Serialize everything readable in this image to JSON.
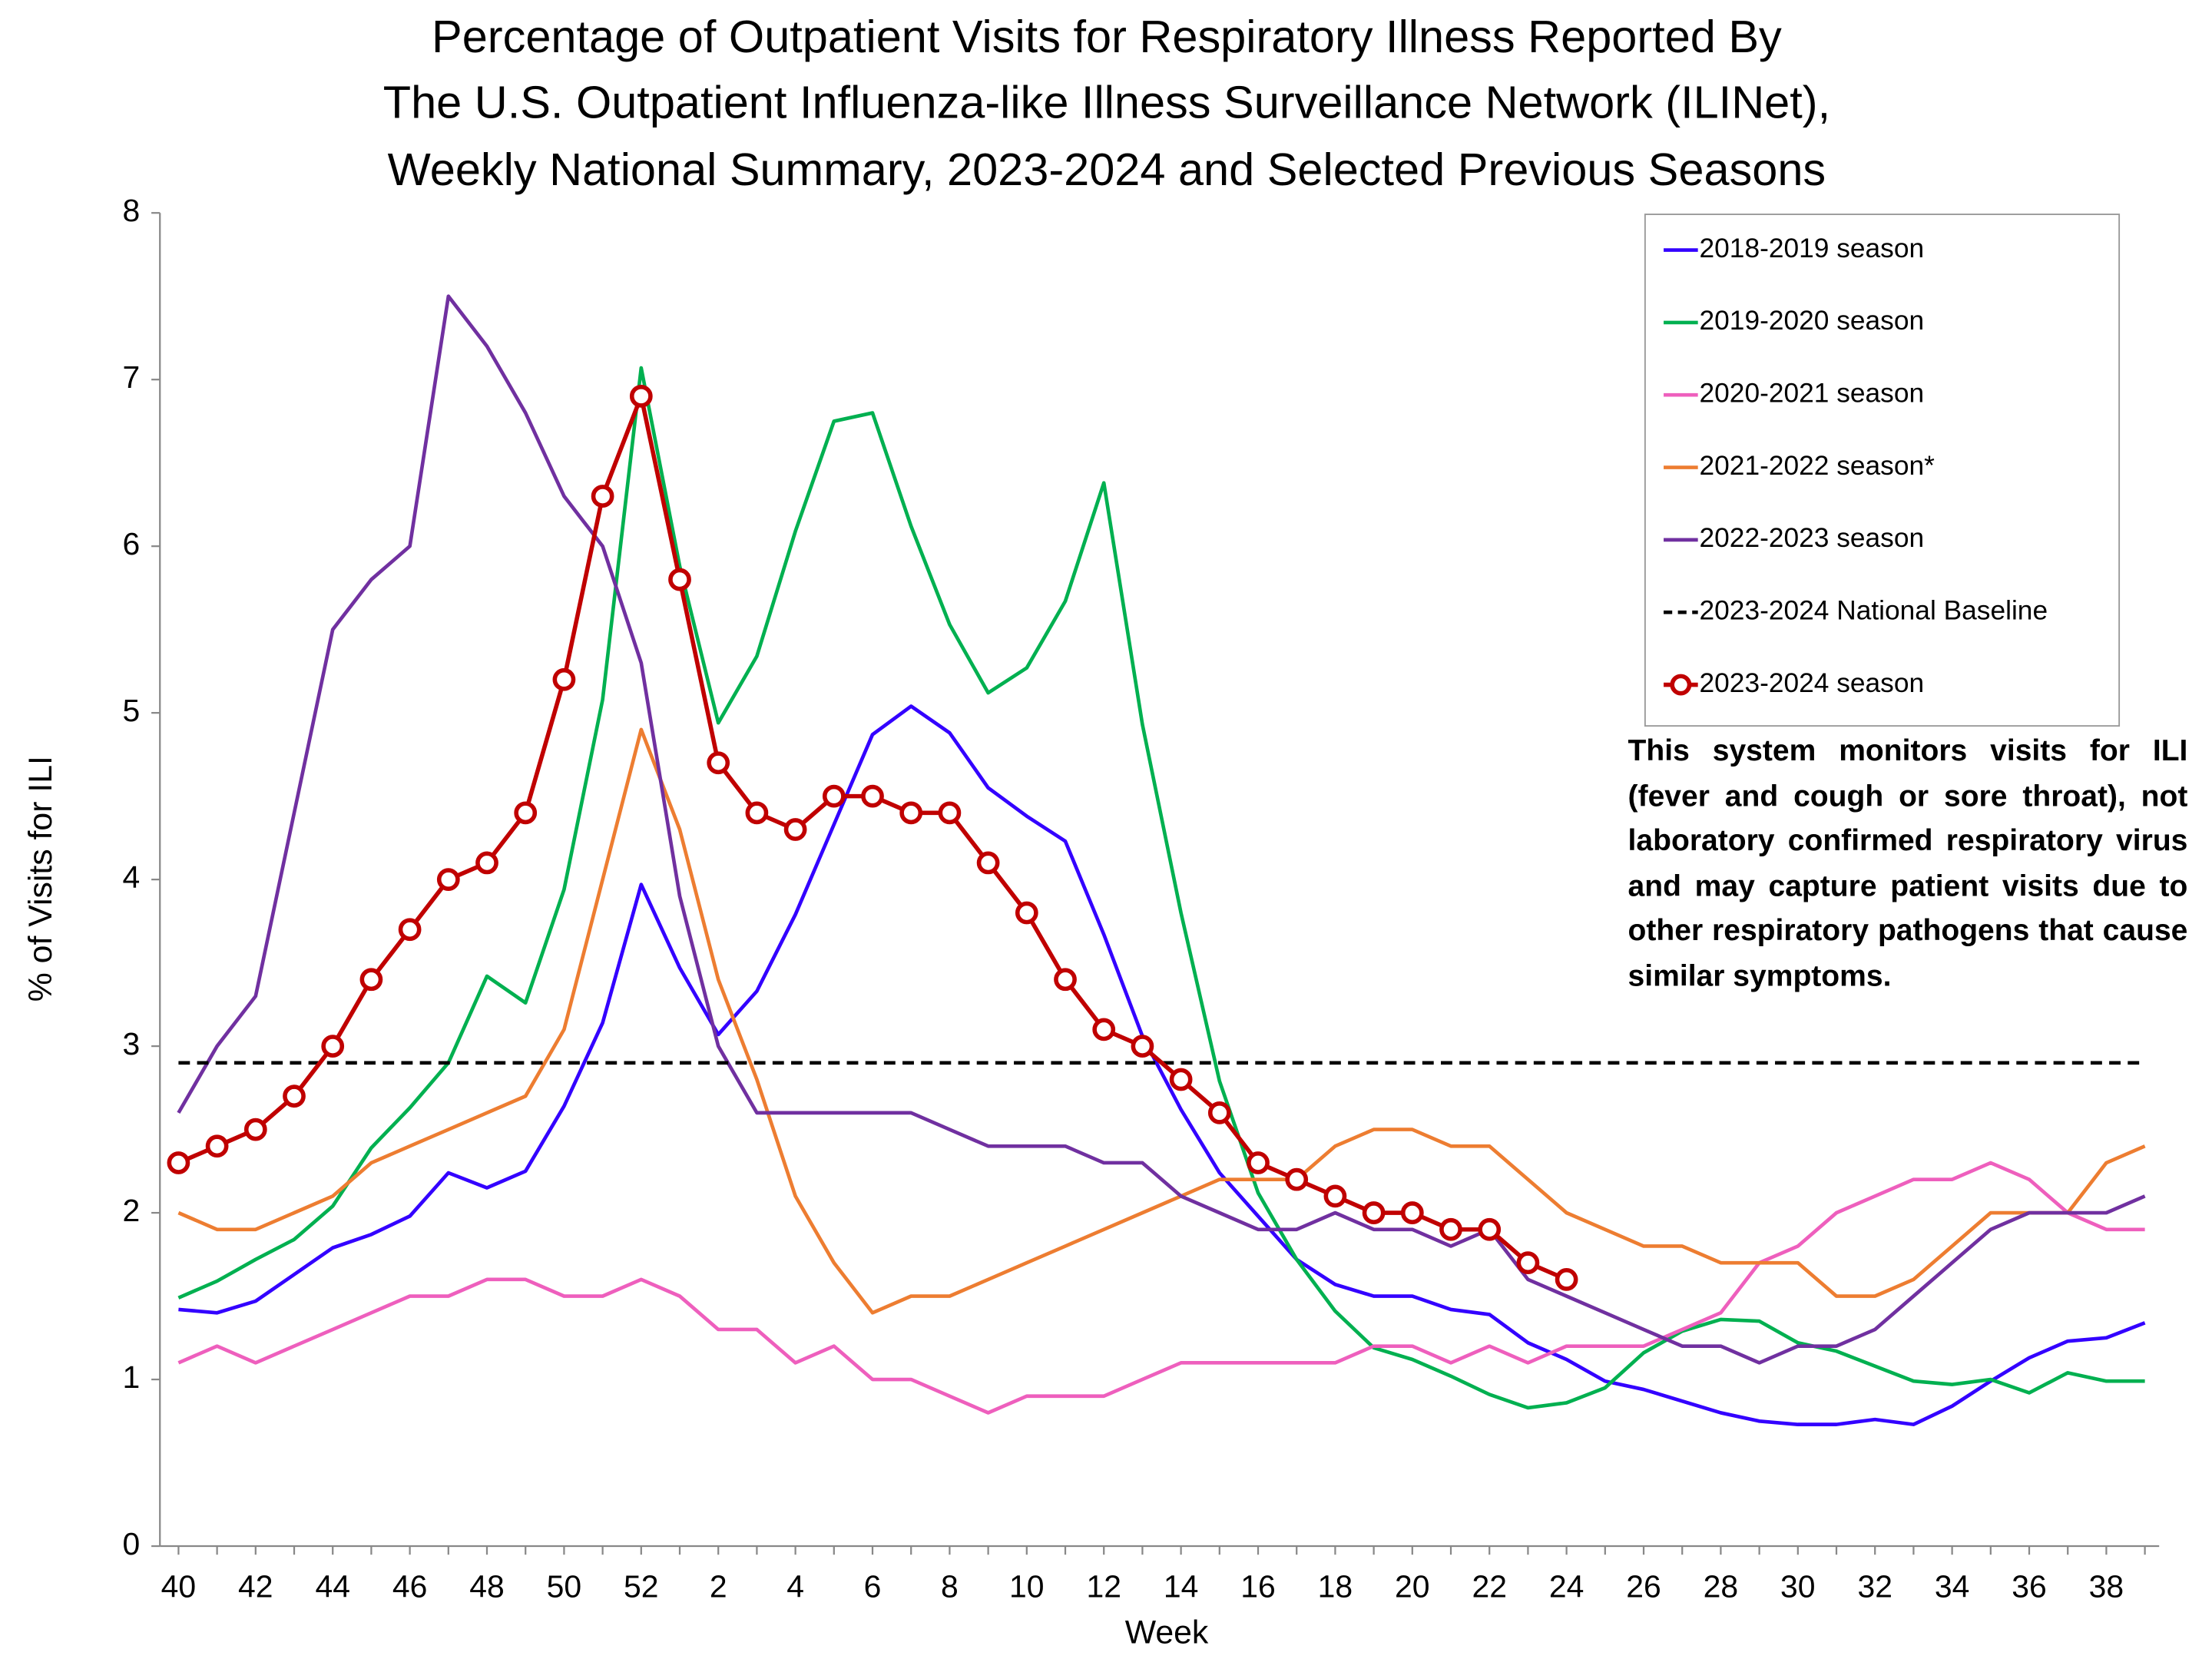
{
  "chart_data": {
    "type": "line",
    "title": [
      "Percentage of Outpatient Visits for Respiratory Illness Reported By",
      "The U.S. Outpatient Influenza-like Illness Surveillance Network (ILINet),",
      "Weekly National Summary, 2023-2024 and Selected Previous Seasons"
    ],
    "x_label": "Week",
    "y_label": "% of Visits for ILI",
    "note": "This system monitors visits for ILI (fever and cough or sore throat), not laboratory confirmed respiratory virus and may capture patient visits due to other respiratory pathogens that cause similar symptoms.",
    "categories": [
      "40",
      null,
      "42",
      null,
      "44",
      null,
      "46",
      null,
      "48",
      null,
      "50",
      null,
      "52",
      null,
      "2",
      null,
      "4",
      null,
      "6",
      null,
      "8",
      null,
      "10",
      null,
      "12",
      null,
      "14",
      null,
      "16",
      null,
      "18",
      null,
      "20",
      null,
      "22",
      null,
      "24",
      null,
      "26",
      null,
      "28",
      null,
      "30",
      null,
      "32",
      null,
      "34",
      null,
      "36",
      null,
      "38",
      null
    ],
    "ylim": [
      0,
      8
    ],
    "yticks": [
      0,
      1,
      2,
      3,
      4,
      5,
      6,
      7,
      8
    ],
    "series": [
      {
        "name": "2018-2019 season",
        "color": "#3300ff",
        "values": [
          1.42,
          1.4,
          1.47,
          1.63,
          1.79,
          1.87,
          1.98,
          2.24,
          2.15,
          2.25,
          2.64,
          3.14,
          3.97,
          3.47,
          3.07,
          3.33,
          3.79,
          4.33,
          4.87,
          5.04,
          4.88,
          4.55,
          4.38,
          4.23,
          3.67,
          3.06,
          2.62,
          2.24,
          1.98,
          1.72,
          1.57,
          1.5,
          1.5,
          1.42,
          1.39,
          1.22,
          1.12,
          0.99,
          0.94,
          0.87,
          0.8,
          0.75,
          0.73,
          0.73,
          0.76,
          0.73,
          0.84,
          0.99,
          1.13,
          1.23,
          1.25,
          1.34
        ]
      },
      {
        "name": "2019-2020 season",
        "color": "#00b050",
        "values": [
          1.49,
          1.59,
          1.72,
          1.84,
          2.04,
          2.39,
          2.63,
          2.9,
          3.42,
          3.26,
          3.94,
          5.08,
          7.07,
          5.88,
          4.94,
          5.34,
          6.09,
          6.75,
          6.8,
          6.12,
          5.53,
          5.12,
          5.27,
          5.67,
          6.38,
          4.93,
          3.8,
          2.79,
          2.12,
          1.72,
          1.41,
          1.19,
          1.12,
          1.02,
          0.91,
          0.83,
          0.86,
          0.95,
          1.16,
          1.29,
          1.36,
          1.35,
          1.22,
          1.17,
          1.08,
          0.99,
          0.97,
          1.0,
          0.92,
          1.04,
          0.99,
          0.99
        ]
      },
      {
        "name": "2020-2021 season",
        "color": "#ee5fbd",
        "values": [
          1.1,
          1.2,
          1.1,
          1.2,
          1.3,
          1.4,
          1.5,
          1.5,
          1.6,
          1.6,
          1.5,
          1.5,
          1.6,
          1.5,
          1.3,
          1.3,
          1.1,
          1.2,
          1.0,
          1.0,
          0.9,
          0.8,
          0.9,
          0.9,
          0.9,
          1.0,
          1.1,
          1.1,
          1.1,
          1.1,
          1.1,
          1.2,
          1.2,
          1.1,
          1.2,
          1.1,
          1.2,
          1.2,
          1.2,
          1.3,
          1.4,
          1.7,
          1.8,
          2.0,
          2.1,
          2.2,
          2.2,
          2.3,
          2.2,
          2.0,
          1.9,
          1.9
        ]
      },
      {
        "name": "2021-2022 season*",
        "color": "#ed7d31",
        "values": [
          2.0,
          1.9,
          1.9,
          2.0,
          2.1,
          2.3,
          2.4,
          2.5,
          2.6,
          2.7,
          3.1,
          4.0,
          4.9,
          4.3,
          3.4,
          2.8,
          2.1,
          1.7,
          1.4,
          1.5,
          1.5,
          1.6,
          1.7,
          1.8,
          1.9,
          2.0,
          2.1,
          2.2,
          2.2,
          2.2,
          2.4,
          2.5,
          2.5,
          2.4,
          2.4,
          2.2,
          2.0,
          1.9,
          1.8,
          1.8,
          1.7,
          1.7,
          1.7,
          1.5,
          1.5,
          1.6,
          1.8,
          2.0,
          2.0,
          2.0,
          2.3,
          2.4
        ]
      },
      {
        "name": "2022-2023 season",
        "color": "#7030a0",
        "values": [
          2.6,
          3.0,
          3.3,
          4.4,
          5.5,
          5.8,
          6.0,
          7.5,
          7.2,
          6.8,
          6.3,
          6.0,
          5.3,
          3.9,
          3.0,
          2.6,
          2.6,
          2.6,
          2.6,
          2.6,
          2.5,
          2.4,
          2.4,
          2.4,
          2.3,
          2.3,
          2.1,
          2.0,
          1.9,
          1.9,
          2.0,
          1.9,
          1.9,
          1.8,
          1.9,
          1.6,
          1.5,
          1.4,
          1.3,
          1.2,
          1.2,
          1.1,
          1.2,
          1.2,
          1.3,
          1.5,
          1.7,
          1.9,
          2.0,
          2.0,
          2.0,
          2.1
        ]
      },
      {
        "name": "2023-2024 National Baseline",
        "color": "#000000",
        "dash": true,
        "values": [
          2.9,
          2.9,
          2.9,
          2.9,
          2.9,
          2.9,
          2.9,
          2.9,
          2.9,
          2.9,
          2.9,
          2.9,
          2.9,
          2.9,
          2.9,
          2.9,
          2.9,
          2.9,
          2.9,
          2.9,
          2.9,
          2.9,
          2.9,
          2.9,
          2.9,
          2.9,
          2.9,
          2.9,
          2.9,
          2.9,
          2.9,
          2.9,
          2.9,
          2.9,
          2.9,
          2.9,
          2.9,
          2.9,
          2.9,
          2.9,
          2.9,
          2.9,
          2.9,
          2.9,
          2.9,
          2.9,
          2.9,
          2.9,
          2.9,
          2.9,
          2.9,
          2.9
        ]
      },
      {
        "name": "2023-2024 season",
        "color": "#c00000",
        "markers": true,
        "values": [
          2.3,
          2.4,
          2.5,
          2.7,
          3.0,
          3.4,
          3.7,
          4.0,
          4.1,
          4.4,
          5.2,
          6.3,
          6.9,
          5.8,
          4.7,
          4.4,
          4.3,
          4.5,
          4.5,
          4.4,
          4.4,
          4.1,
          3.8,
          3.4,
          3.1,
          3.0,
          2.8,
          2.6,
          2.3,
          2.2,
          2.1,
          2.0,
          2.0,
          1.9,
          1.9,
          1.7,
          1.6,
          null,
          null,
          null,
          null,
          null,
          null,
          null,
          null,
          null,
          null,
          null,
          null,
          null,
          null,
          null
        ]
      }
    ]
  }
}
